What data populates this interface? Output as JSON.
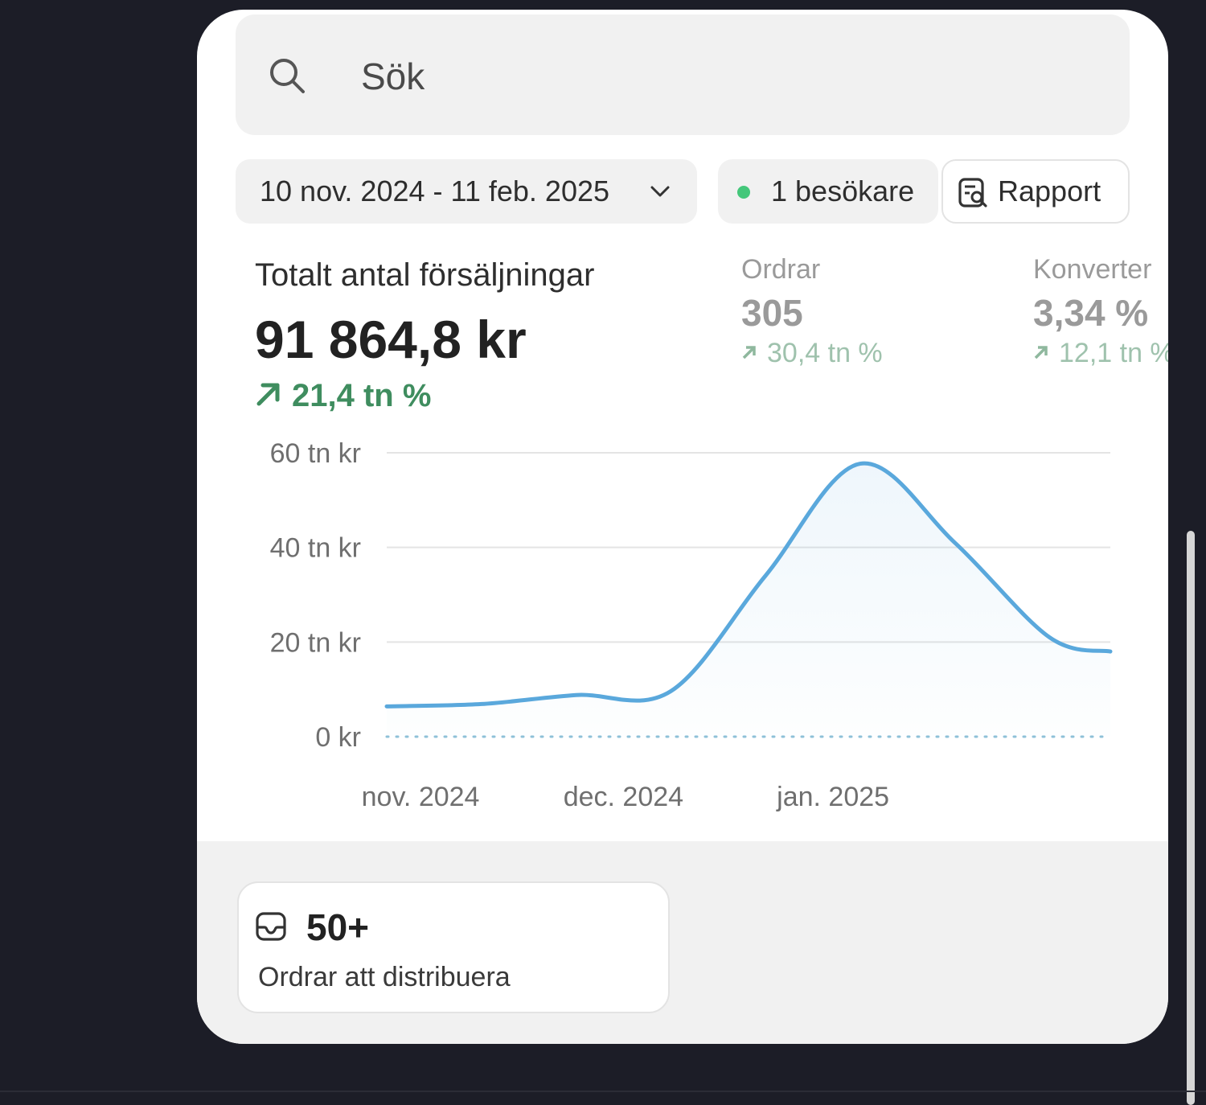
{
  "search": {
    "placeholder": "Sök"
  },
  "filters": {
    "date_range": "10 nov. 2024 - 11 feb. 2025",
    "visitors": "1 besökare",
    "report_label": "Rapport"
  },
  "metrics": {
    "total_sales": {
      "label": "Totalt antal försäljningar",
      "value": "91 864,8 kr",
      "trend": "21,4 tn %"
    },
    "orders": {
      "label": "Ordrar",
      "value": "305",
      "trend": "30,4 tn %"
    },
    "conversion": {
      "label": "Konverter",
      "value": "3,34 %",
      "trend": "12,1 tn %"
    }
  },
  "chart_data": {
    "type": "area",
    "y_tick_labels": [
      "60 tn kr",
      "40 tn kr",
      "20 tn kr",
      "0 kr"
    ],
    "y_ticks": [
      60000,
      40000,
      20000,
      0
    ],
    "ylim": [
      0,
      60000
    ],
    "x_tick_labels": [
      "nov. 2024",
      "dec. 2024",
      "jan. 2025"
    ],
    "x_ticks": [
      "2024-11-01",
      "2024-12-01",
      "2025-01-01"
    ],
    "xlim": [
      "2024-10-27",
      "2025-02-11"
    ],
    "series": [
      {
        "x": [
          "2024-10-27",
          "2024-11-10",
          "2024-11-24",
          "2024-12-08",
          "2024-12-22",
          "2025-01-05",
          "2025-01-19",
          "2025-02-02",
          "2025-02-11"
        ],
        "values": [
          6400,
          6900,
          8800,
          9600,
          34000,
          57700,
          41000,
          21000,
          18000
        ],
        "color": "#5aa8dc"
      }
    ],
    "baseline_style": "dotted",
    "grid": true
  },
  "todo": {
    "count": "50+",
    "label": "Ordrar att distribuera"
  }
}
